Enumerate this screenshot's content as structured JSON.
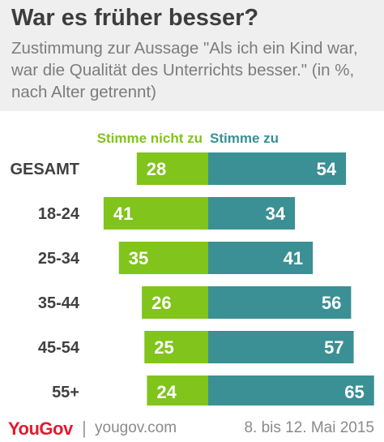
{
  "header": {
    "title": "War es früher besser?",
    "subtitle": "Zustimmung zur Aussage \"Als ich ein Kind war, war die Qualität des Unterrichts besser.\" (in %, nach Alter getrennt)"
  },
  "chart_data": {
    "type": "bar",
    "orientation": "horizontal-diverging",
    "categories": [
      "GESAMT",
      "18-24",
      "25-34",
      "35-44",
      "45-54",
      "55+"
    ],
    "series": [
      {
        "name": "Stimme nicht zu",
        "values": [
          28,
          41,
          35,
          26,
          25,
          24
        ],
        "color": "#80c41c",
        "direction": "left"
      },
      {
        "name": "Stimme zu",
        "values": [
          54,
          34,
          41,
          56,
          57,
          65
        ],
        "color": "#3a9094",
        "direction": "right"
      }
    ],
    "legend_position": "top-center",
    "grid": false,
    "data_labels": true
  },
  "footer": {
    "brand": "YouGov",
    "separator": "|",
    "site": "yougov.com",
    "date": "8. bis 12. Mai 2015"
  },
  "colors": {
    "header_bg": "#efefef",
    "title": "#3d3d3d",
    "subtitle": "#7c7c7c",
    "category_label": "#404040",
    "brand_red": "#e4192e"
  }
}
